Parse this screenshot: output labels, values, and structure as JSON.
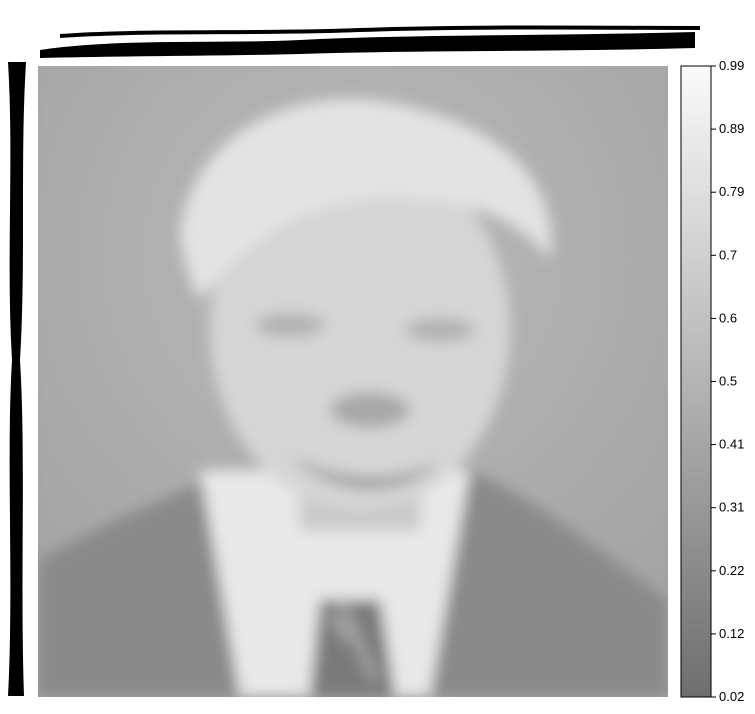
{
  "chart_data": {
    "type": "heatmap",
    "title": "",
    "xlabel": "",
    "ylabel": "",
    "colormap": "gray",
    "colorbar": {
      "ticks": [
        0.02,
        0.12,
        0.22,
        0.31,
        0.41,
        0.5,
        0.6,
        0.7,
        0.79,
        0.89,
        0.99
      ],
      "range": [
        0.02,
        0.99
      ],
      "color_low": "#6e6e6e",
      "color_high": "#fafafa"
    },
    "image_content": "blurred grayscale portrait of a smiling man with light hair, dark suit, white shirt and striped tie",
    "overlay_text_legible": false
  }
}
